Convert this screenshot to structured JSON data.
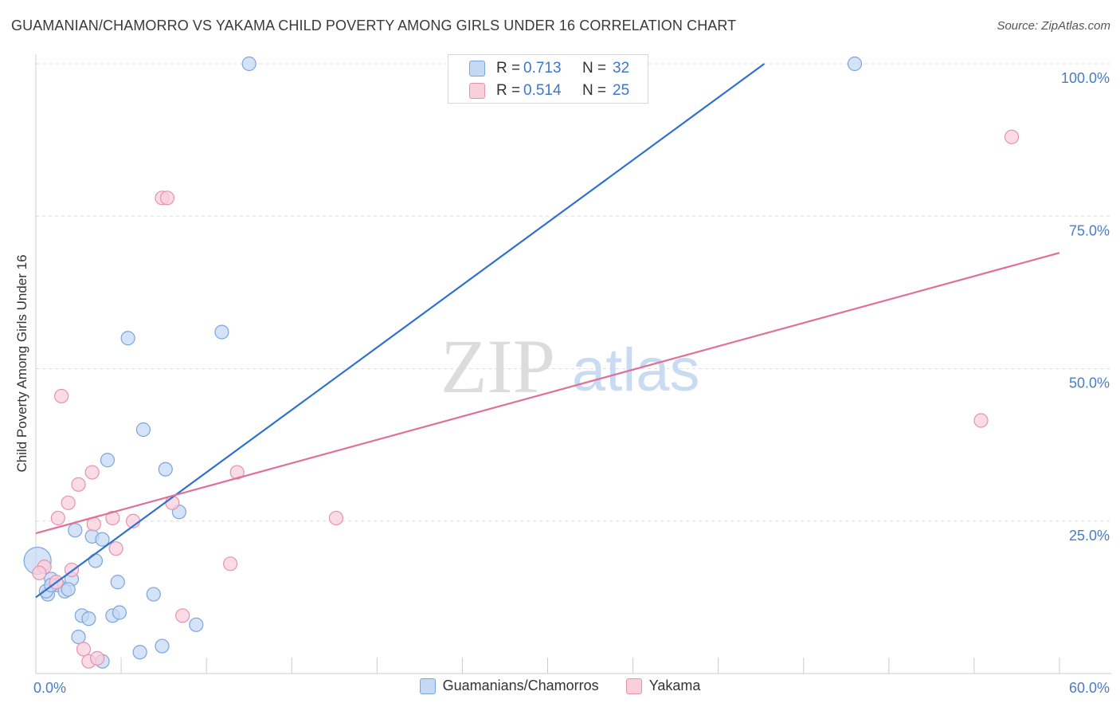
{
  "title": "GUAMANIAN/CHAMORRO VS YAKAMA CHILD POVERTY AMONG GIRLS UNDER 16 CORRELATION CHART",
  "source": "Source: ZipAtlas.com",
  "watermark": {
    "zip": "ZIP",
    "atlas": "atlas"
  },
  "legend_top": [
    {
      "r_label": "R =",
      "r_value": "0.713",
      "n_label": "N =",
      "n_value": "32"
    },
    {
      "r_label": "R =",
      "r_value": "0.514",
      "n_label": "N =",
      "n_value": "25"
    }
  ],
  "legend_bottom": [
    "Guamanians/Chamorros",
    "Yakama"
  ],
  "colors": {
    "blue_fill": "#c5d9f5",
    "blue_stroke": "#7aa5dc",
    "blue_line": "#2e72cf",
    "pink_fill": "#f9cfdc",
    "pink_stroke": "#e892ad",
    "pink_line": "#e0709a",
    "tick_text": "#4a7cc4",
    "grid": "#dddddd"
  },
  "chart_data": {
    "type": "scatter",
    "title": "GUAMANIAN/CHAMORRO VS YAKAMA CHILD POVERTY AMONG GIRLS UNDER 16 CORRELATION CHART",
    "xlabel": "",
    "ylabel": "Child Poverty Among Girls Under 16",
    "xlim": [
      0,
      60
    ],
    "ylim": [
      0,
      100
    ],
    "x_tick_labels": [
      "0.0%",
      "60.0%"
    ],
    "y_ticks": [
      25,
      50,
      75,
      100
    ],
    "y_tick_labels": [
      "25.0%",
      "50.0%",
      "75.0%",
      "100.0%"
    ],
    "grid": true,
    "series": [
      {
        "name": "Guamanians/Chamorros",
        "r": 0.713,
        "n": 32,
        "trend": [
          [
            0,
            12.5
          ],
          [
            42.7,
            100
          ]
        ],
        "points": [
          [
            0.1,
            18.5,
            "large"
          ],
          [
            12.5,
            100
          ],
          [
            48.0,
            100
          ],
          [
            5.4,
            55.0
          ],
          [
            10.9,
            56.0
          ],
          [
            6.3,
            40.0
          ],
          [
            4.2,
            35.0
          ],
          [
            7.6,
            33.5
          ],
          [
            8.4,
            26.5
          ],
          [
            2.3,
            23.5
          ],
          [
            3.3,
            22.5
          ],
          [
            3.9,
            22.0
          ],
          [
            3.5,
            18.5
          ],
          [
            0.9,
            15.5
          ],
          [
            2.1,
            15.5
          ],
          [
            1.3,
            14.5
          ],
          [
            1.7,
            13.5
          ],
          [
            0.7,
            13.0
          ],
          [
            0.6,
            13.5
          ],
          [
            1.9,
            13.8
          ],
          [
            4.8,
            15.0
          ],
          [
            6.9,
            13.0
          ],
          [
            2.7,
            9.5
          ],
          [
            3.1,
            9.0
          ],
          [
            4.5,
            9.5
          ],
          [
            4.9,
            10.0
          ],
          [
            9.4,
            8.0
          ],
          [
            2.5,
            6.0
          ],
          [
            7.4,
            4.5
          ],
          [
            6.1,
            3.5
          ],
          [
            3.9,
            2.0
          ],
          [
            0.9,
            14.5
          ]
        ]
      },
      {
        "name": "Yakama",
        "r": 0.514,
        "n": 25,
        "trend": [
          [
            0,
            23.0
          ],
          [
            60,
            69.0
          ]
        ],
        "points": [
          [
            57.2,
            88.0
          ],
          [
            7.4,
            78.0
          ],
          [
            7.7,
            78.0
          ],
          [
            1.5,
            45.5
          ],
          [
            55.4,
            41.5
          ],
          [
            3.3,
            33.0
          ],
          [
            11.8,
            33.0
          ],
          [
            2.5,
            31.0
          ],
          [
            1.9,
            28.0
          ],
          [
            8.0,
            28.0
          ],
          [
            1.3,
            25.5
          ],
          [
            4.5,
            25.5
          ],
          [
            5.7,
            25.0
          ],
          [
            17.6,
            25.5
          ],
          [
            3.4,
            24.5
          ],
          [
            4.7,
            20.5
          ],
          [
            11.4,
            18.0
          ],
          [
            0.5,
            17.5
          ],
          [
            2.1,
            17.0
          ],
          [
            0.2,
            16.5
          ],
          [
            1.2,
            15.0
          ],
          [
            8.6,
            9.5
          ],
          [
            2.8,
            4.0
          ],
          [
            3.1,
            2.0
          ],
          [
            3.6,
            2.5
          ]
        ]
      }
    ]
  }
}
